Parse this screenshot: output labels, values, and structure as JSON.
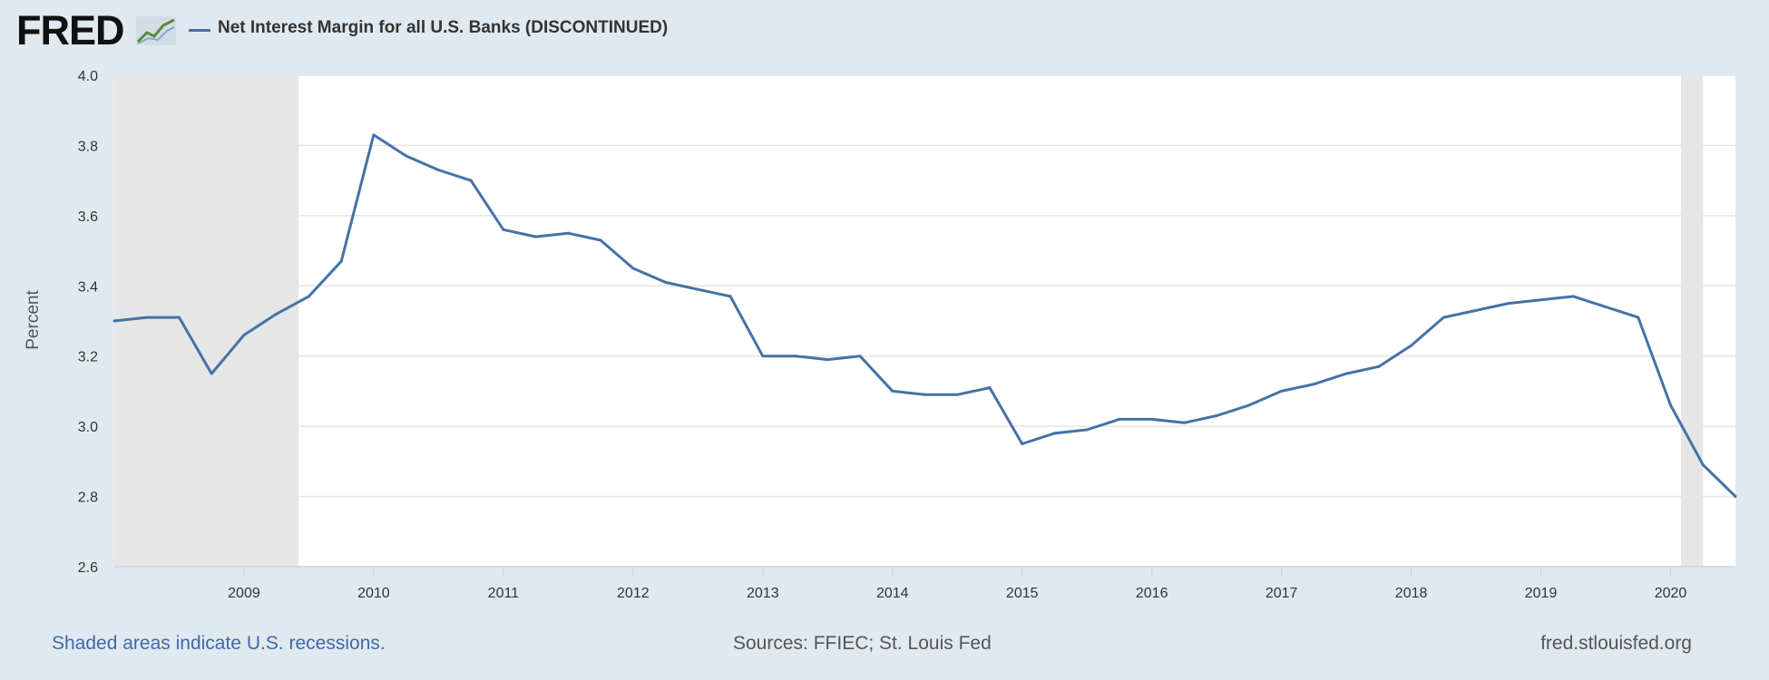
{
  "header": {
    "logo": "FRED",
    "logo_icon": "trend-line-icon",
    "legend_label": "Net Interest Margin for all U.S. Banks (DISCONTINUED)"
  },
  "footer": {
    "recession_note": "Shaded areas indicate U.S. recessions.",
    "sources": "Sources: FFIEC; St. Louis Fed",
    "site": "fred.stlouisfed.org"
  },
  "chart_data": {
    "type": "line",
    "ylabel": "Percent",
    "ylim": [
      2.6,
      4.0
    ],
    "xlim": [
      2008.0,
      2020.5
    ],
    "yticks": [
      "2.6",
      "2.8",
      "3.0",
      "3.2",
      "3.4",
      "3.6",
      "3.8",
      "4.0"
    ],
    "xticks": [
      "2009",
      "2010",
      "2011",
      "2012",
      "2013",
      "2014",
      "2015",
      "2016",
      "2017",
      "2018",
      "2019",
      "2020"
    ],
    "grid": true,
    "line_color": "#4572a7",
    "recessions": [
      [
        2008.0,
        2009.42
      ],
      [
        2020.08,
        2020.25
      ]
    ],
    "series": [
      {
        "x": [
          2008.0,
          2008.25,
          2008.5,
          2008.75,
          2009.0,
          2009.25,
          2009.5,
          2009.75,
          2010.0,
          2010.25,
          2010.5,
          2010.75,
          2011.0,
          2011.25,
          2011.5,
          2011.75,
          2012.0,
          2012.25,
          2012.5,
          2012.75,
          2013.0,
          2013.25,
          2013.5,
          2013.75,
          2014.0,
          2014.25,
          2014.5,
          2014.75,
          2015.0,
          2015.25,
          2015.5,
          2015.75,
          2016.0,
          2016.25,
          2016.5,
          2016.75,
          2017.0,
          2017.25,
          2017.5,
          2017.75,
          2018.0,
          2018.25,
          2018.5,
          2018.75,
          2019.0,
          2019.25,
          2019.5,
          2019.75,
          2020.0,
          2020.25,
          2020.5
        ],
        "values": [
          3.3,
          3.31,
          3.31,
          3.15,
          3.26,
          3.32,
          3.37,
          3.47,
          3.83,
          3.77,
          3.73,
          3.7,
          3.56,
          3.54,
          3.55,
          3.53,
          3.45,
          3.41,
          3.39,
          3.37,
          3.2,
          3.2,
          3.19,
          3.2,
          3.1,
          3.09,
          3.09,
          3.11,
          2.95,
          2.98,
          2.99,
          3.02,
          3.02,
          3.01,
          3.03,
          3.06,
          3.1,
          3.12,
          3.15,
          3.17,
          3.23,
          3.31,
          3.33,
          3.35,
          3.36,
          3.37,
          3.34,
          3.31,
          3.06,
          2.89,
          2.8
        ]
      }
    ]
  },
  "colors": {
    "background": "#e1e9f0",
    "plot": "#ffffff",
    "recession": "#e6e6e6",
    "grid": "#e6e6e6"
  }
}
